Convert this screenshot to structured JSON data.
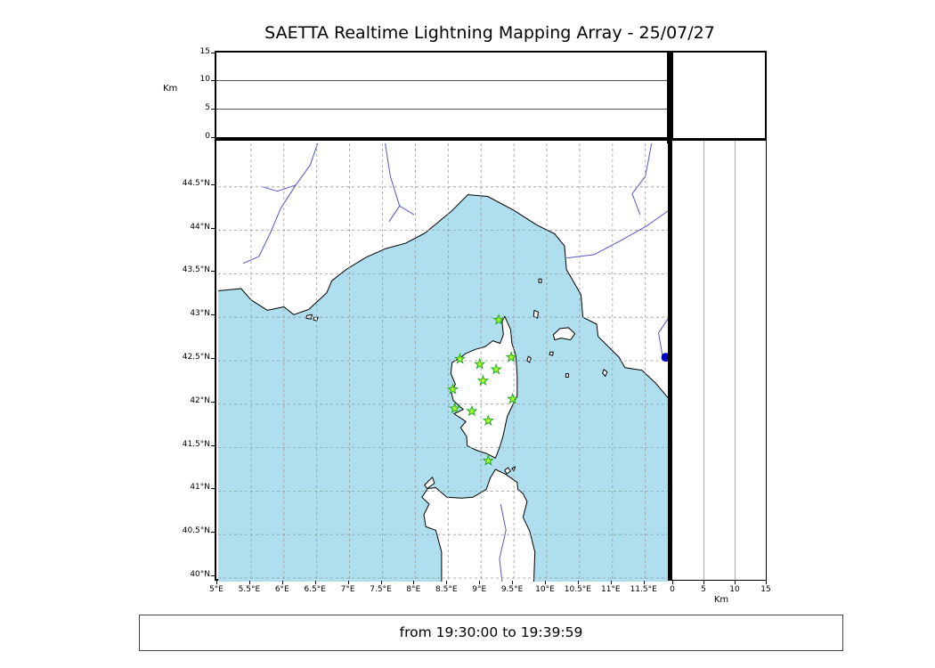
{
  "title": "SAETTA Realtime Lightning Mapping Array - 25/07/27",
  "status_bar": {
    "text": "from 19:30:00 to 19:39:59"
  },
  "altitude_axis": {
    "label": "Km",
    "ticks": [
      0,
      5,
      10,
      15
    ],
    "max": 15,
    "gridlines": [
      5,
      10
    ]
  },
  "right_panel": {
    "label": "Km",
    "ticks": [
      0,
      5,
      10,
      15
    ],
    "max": 15,
    "gridlines": [
      5,
      10
    ]
  },
  "map": {
    "lon_min": 5,
    "lon_max": 11.87,
    "lat_min": 39.96,
    "lat_max": 45.0,
    "lat_ticks": [
      {
        "label": "44.5°N",
        "value": 44.5
      },
      {
        "label": "44°N",
        "value": 44
      },
      {
        "label": "43.5°N",
        "value": 43.5
      },
      {
        "label": "43°N",
        "value": 43
      },
      {
        "label": "42.5°N",
        "value": 42.5
      },
      {
        "label": "42°N",
        "value": 42
      },
      {
        "label": "41.5°N",
        "value": 41.5
      },
      {
        "label": "41°N",
        "value": 41
      },
      {
        "label": "40.5°N",
        "value": 40.5
      },
      {
        "label": "40°N",
        "value": 40
      }
    ],
    "lon_ticks": [
      {
        "label": "5°E",
        "value": 5
      },
      {
        "label": "5.5°E",
        "value": 5.5
      },
      {
        "label": "6°E",
        "value": 6
      },
      {
        "label": "6.5°E",
        "value": 6.5
      },
      {
        "label": "7°E",
        "value": 7
      },
      {
        "label": "7.5°E",
        "value": 7.5
      },
      {
        "label": "8°E",
        "value": 8
      },
      {
        "label": "8.5°E",
        "value": 8.5
      },
      {
        "label": "9°E",
        "value": 9
      },
      {
        "label": "9.5°E",
        "value": 9.5
      },
      {
        "label": "10°E",
        "value": 10
      },
      {
        "label": "10.5°E",
        "value": 10.5
      },
      {
        "label": "11°E",
        "value": 11
      },
      {
        "label": "11.5°E",
        "value": 11.5
      }
    ]
  },
  "stations": [
    {
      "lon": 9.27,
      "lat": 42.97
    },
    {
      "lon": 8.68,
      "lat": 42.52
    },
    {
      "lon": 8.98,
      "lat": 42.46
    },
    {
      "lon": 9.46,
      "lat": 42.54
    },
    {
      "lon": 9.23,
      "lat": 42.4
    },
    {
      "lon": 9.03,
      "lat": 42.27
    },
    {
      "lon": 8.57,
      "lat": 42.17
    },
    {
      "lon": 9.48,
      "lat": 42.06
    },
    {
      "lon": 8.6,
      "lat": 41.95
    },
    {
      "lon": 8.86,
      "lat": 41.92
    },
    {
      "lon": 9.11,
      "lat": 41.81
    },
    {
      "lon": 9.11,
      "lat": 41.35
    }
  ],
  "event_dot": {
    "lon": 11.81,
    "lat": 42.54
  },
  "colors": {
    "sea": "#afdfee",
    "land": "#ffffff",
    "coast": "#000000",
    "river": "#5555cc",
    "grid": "#999999",
    "star_fill": "#adff2f",
    "star_edge": "#22aa22",
    "dot": "#0000d0"
  },
  "geometry": {
    "land": [
      {
        "name": "mainland",
        "pts": [
          [
            4.95,
            43.3
          ],
          [
            5.35,
            43.33
          ],
          [
            5.5,
            43.2
          ],
          [
            5.75,
            43.08
          ],
          [
            6.0,
            43.12
          ],
          [
            6.15,
            43.03
          ],
          [
            6.38,
            43.09
          ],
          [
            6.65,
            43.28
          ],
          [
            6.73,
            43.42
          ],
          [
            6.95,
            43.55
          ],
          [
            7.25,
            43.69
          ],
          [
            7.55,
            43.79
          ],
          [
            7.85,
            43.85
          ],
          [
            8.15,
            43.97
          ],
          [
            8.55,
            44.22
          ],
          [
            8.8,
            44.41
          ],
          [
            9.1,
            44.39
          ],
          [
            9.5,
            44.23
          ],
          [
            9.85,
            44.06
          ],
          [
            10.12,
            43.96
          ],
          [
            10.27,
            43.82
          ],
          [
            10.3,
            43.55
          ],
          [
            10.52,
            43.26
          ],
          [
            10.55,
            43.0
          ],
          [
            10.76,
            42.92
          ],
          [
            10.78,
            42.78
          ],
          [
            11.1,
            42.54
          ],
          [
            11.19,
            42.42
          ],
          [
            11.45,
            42.39
          ],
          [
            11.66,
            42.24
          ],
          [
            11.95,
            41.98
          ],
          [
            11.95,
            45.1
          ],
          [
            4.95,
            45.1
          ]
        ]
      },
      {
        "name": "corsica",
        "pts": [
          [
            9.36,
            43.01
          ],
          [
            9.45,
            42.86
          ],
          [
            9.47,
            42.7
          ],
          [
            9.53,
            42.56
          ],
          [
            9.55,
            42.32
          ],
          [
            9.55,
            42.1
          ],
          [
            9.4,
            41.86
          ],
          [
            9.33,
            41.62
          ],
          [
            9.28,
            41.5
          ],
          [
            9.22,
            41.38
          ],
          [
            9.09,
            41.43
          ],
          [
            8.93,
            41.47
          ],
          [
            8.79,
            41.52
          ],
          [
            8.78,
            41.63
          ],
          [
            8.69,
            41.73
          ],
          [
            8.77,
            41.8
          ],
          [
            8.59,
            41.89
          ],
          [
            8.73,
            41.94
          ],
          [
            8.58,
            42.04
          ],
          [
            8.55,
            42.13
          ],
          [
            8.61,
            42.23
          ],
          [
            8.54,
            42.35
          ],
          [
            8.56,
            42.48
          ],
          [
            8.68,
            42.53
          ],
          [
            8.76,
            42.58
          ],
          [
            8.91,
            42.63
          ],
          [
            9.06,
            42.66
          ],
          [
            9.18,
            42.73
          ],
          [
            9.29,
            42.7
          ],
          [
            9.34,
            42.8
          ],
          [
            9.32,
            42.95
          ]
        ]
      },
      {
        "name": "sardinia",
        "pts": [
          [
            8.4,
            39.88
          ],
          [
            8.4,
            40.3
          ],
          [
            8.31,
            40.55
          ],
          [
            8.16,
            40.59
          ],
          [
            8.13,
            40.73
          ],
          [
            8.21,
            40.85
          ],
          [
            8.1,
            40.93
          ],
          [
            8.19,
            41.03
          ],
          [
            8.31,
            41.04
          ],
          [
            8.48,
            40.93
          ],
          [
            8.7,
            40.92
          ],
          [
            8.88,
            40.93
          ],
          [
            9.08,
            41.02
          ],
          [
            9.14,
            41.15
          ],
          [
            9.22,
            41.25
          ],
          [
            9.36,
            41.2
          ],
          [
            9.46,
            41.15
          ],
          [
            9.55,
            41.1
          ],
          [
            9.56,
            41.02
          ],
          [
            9.64,
            40.97
          ],
          [
            9.7,
            40.88
          ],
          [
            9.64,
            40.7
          ],
          [
            9.74,
            40.54
          ],
          [
            9.82,
            40.3
          ],
          [
            9.8,
            39.88
          ]
        ]
      },
      {
        "name": "asinara",
        "pts": [
          [
            8.18,
            41.03
          ],
          [
            8.29,
            41.09
          ],
          [
            8.26,
            41.16
          ],
          [
            8.14,
            41.07
          ]
        ]
      },
      {
        "name": "maddalena-1",
        "pts": [
          [
            9.39,
            41.2
          ],
          [
            9.45,
            41.23
          ],
          [
            9.41,
            41.27
          ],
          [
            9.36,
            41.24
          ]
        ]
      },
      {
        "name": "maddalena-2",
        "pts": [
          [
            9.47,
            41.26
          ],
          [
            9.52,
            41.28
          ],
          [
            9.5,
            41.23
          ]
        ]
      },
      {
        "name": "elba",
        "pts": [
          [
            10.1,
            42.8
          ],
          [
            10.2,
            42.87
          ],
          [
            10.33,
            42.88
          ],
          [
            10.43,
            42.81
          ],
          [
            10.36,
            42.74
          ],
          [
            10.22,
            42.76
          ],
          [
            10.12,
            42.74
          ]
        ]
      },
      {
        "name": "capraia",
        "pts": [
          [
            9.81,
            43.08
          ],
          [
            9.87,
            43.06
          ],
          [
            9.86,
            42.99
          ],
          [
            9.8,
            43.01
          ]
        ]
      },
      {
        "name": "gorgona",
        "pts": [
          [
            9.88,
            43.44
          ],
          [
            9.92,
            43.44
          ],
          [
            9.92,
            43.4
          ],
          [
            9.88,
            43.4
          ]
        ]
      },
      {
        "name": "pianosa",
        "pts": [
          [
            10.05,
            42.6
          ],
          [
            10.1,
            42.6
          ],
          [
            10.09,
            42.56
          ],
          [
            10.04,
            42.57
          ]
        ]
      },
      {
        "name": "montecristo",
        "pts": [
          [
            10.29,
            42.35
          ],
          [
            10.33,
            42.35
          ],
          [
            10.33,
            42.31
          ],
          [
            10.29,
            42.31
          ]
        ]
      },
      {
        "name": "giglio",
        "pts": [
          [
            10.87,
            42.4
          ],
          [
            10.92,
            42.37
          ],
          [
            10.89,
            42.32
          ],
          [
            10.85,
            42.36
          ]
        ]
      },
      {
        "name": "hyeres-1",
        "pts": [
          [
            6.35,
            43.02
          ],
          [
            6.43,
            43.03
          ],
          [
            6.41,
            42.98
          ],
          [
            6.34,
            42.99
          ]
        ]
      },
      {
        "name": "hyeres-2",
        "pts": [
          [
            6.46,
            43.0
          ],
          [
            6.52,
            43.0
          ],
          [
            6.5,
            42.96
          ],
          [
            6.45,
            42.97
          ]
        ]
      },
      {
        "name": "islet",
        "pts": [
          [
            9.72,
            42.55
          ],
          [
            9.76,
            42.53
          ],
          [
            9.74,
            42.48
          ],
          [
            9.7,
            42.5
          ]
        ]
      }
    ],
    "rivers": [
      [
        [
          6.56,
          45.1
        ],
        [
          6.4,
          44.75
        ],
        [
          6.18,
          44.52
        ],
        [
          5.95,
          44.25
        ],
        [
          5.8,
          43.98
        ],
        [
          5.62,
          43.7
        ],
        [
          5.38,
          43.62
        ]
      ],
      [
        [
          6.18,
          44.52
        ],
        [
          5.9,
          44.45
        ],
        [
          5.68,
          44.5
        ]
      ],
      [
        [
          7.52,
          45.1
        ],
        [
          7.62,
          44.62
        ],
        [
          7.76,
          44.28
        ],
        [
          7.6,
          44.1
        ]
      ],
      [
        [
          7.76,
          44.28
        ],
        [
          7.98,
          44.18
        ]
      ],
      [
        [
          11.62,
          45.1
        ],
        [
          11.5,
          44.62
        ],
        [
          11.3,
          44.42
        ],
        [
          11.42,
          44.18
        ]
      ],
      [
        [
          11.95,
          44.28
        ],
        [
          11.52,
          44.05
        ],
        [
          11.12,
          43.88
        ],
        [
          10.72,
          43.72
        ],
        [
          10.3,
          43.68
        ]
      ],
      [
        [
          11.95,
          43.1
        ],
        [
          11.7,
          42.82
        ],
        [
          11.76,
          42.56
        ]
      ],
      [
        [
          9.3,
          40.85
        ],
        [
          9.38,
          40.55
        ],
        [
          9.28,
          40.22
        ],
        [
          9.33,
          39.9
        ]
      ]
    ]
  }
}
